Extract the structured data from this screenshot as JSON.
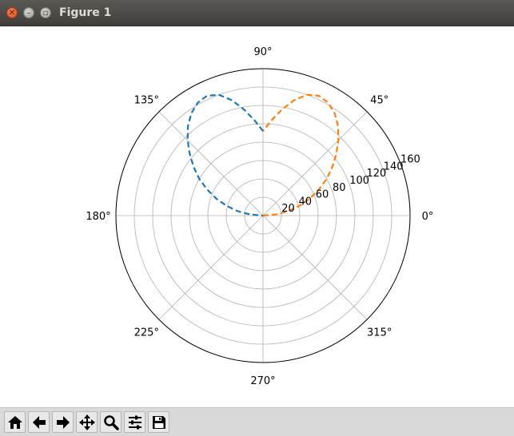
{
  "window": {
    "title": "Figure 1"
  },
  "toolbar": {
    "buttons": [
      {
        "name": "home-button",
        "icon": "home-icon"
      },
      {
        "name": "back-button",
        "icon": "arrow-left-icon"
      },
      {
        "name": "forward-button",
        "icon": "arrow-right-icon"
      },
      {
        "name": "pan-button",
        "icon": "move-icon"
      },
      {
        "name": "zoom-button",
        "icon": "magnifier-icon"
      },
      {
        "name": "subplots-button",
        "icon": "sliders-icon"
      },
      {
        "name": "save-button",
        "icon": "floppy-disk-icon"
      }
    ]
  },
  "chart_data": {
    "type": "polar-line",
    "angle_tick_labels": [
      "0°",
      "45°",
      "90°",
      "135°",
      "180°",
      "225°",
      "270°",
      "315°"
    ],
    "angle_ticks_deg": [
      0,
      45,
      90,
      135,
      180,
      225,
      270,
      315
    ],
    "radial_tick_labels": [
      "20",
      "40",
      "60",
      "80",
      "100",
      "120",
      "140",
      "160"
    ],
    "radial_ticks": [
      20,
      40,
      60,
      80,
      100,
      120,
      140,
      160
    ],
    "rlim": [
      0,
      160
    ],
    "grid": true,
    "series": [
      {
        "color": "#ff7f0e",
        "linestyle": "dashed",
        "points": [
          [
            0,
            0
          ],
          [
            5,
            14
          ],
          [
            10,
            28
          ],
          [
            15,
            41
          ],
          [
            20,
            54
          ],
          [
            25,
            67
          ],
          [
            30,
            80
          ],
          [
            35,
            92
          ],
          [
            40,
            104
          ],
          [
            45,
            116
          ],
          [
            50,
            127
          ],
          [
            55,
            136
          ],
          [
            60,
            142
          ],
          [
            65,
            144
          ],
          [
            70,
            140
          ],
          [
            75,
            130
          ],
          [
            80,
            117
          ],
          [
            85,
            104
          ],
          [
            90,
            92
          ]
        ]
      },
      {
        "color": "#1f77b4",
        "linestyle": "dashed",
        "points": [
          [
            90,
            92
          ],
          [
            95,
            104
          ],
          [
            100,
            117
          ],
          [
            105,
            130
          ],
          [
            110,
            140
          ],
          [
            115,
            144
          ],
          [
            120,
            142
          ],
          [
            125,
            136
          ],
          [
            130,
            127
          ],
          [
            135,
            116
          ],
          [
            140,
            104
          ],
          [
            145,
            92
          ],
          [
            150,
            80
          ],
          [
            155,
            67
          ],
          [
            160,
            54
          ],
          [
            165,
            41
          ],
          [
            170,
            28
          ],
          [
            175,
            14
          ],
          [
            180,
            0
          ]
        ]
      }
    ]
  }
}
